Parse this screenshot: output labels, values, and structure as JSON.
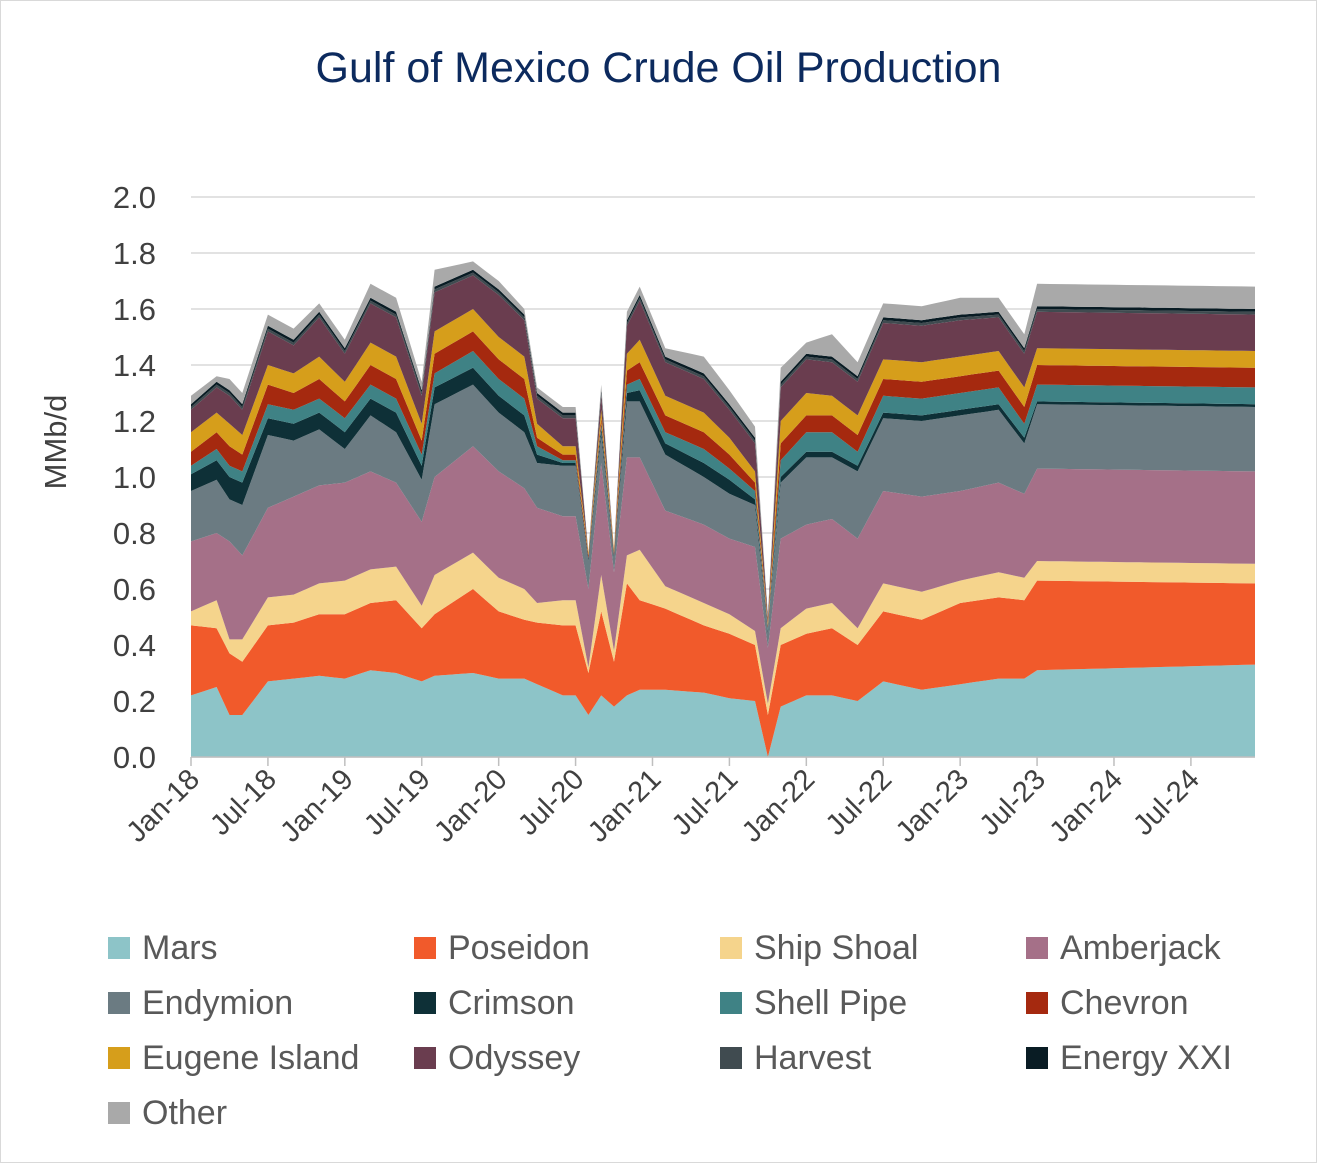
{
  "title": "Gulf of Mexico Crude Oil Production",
  "chart_data": {
    "type": "area",
    "stacked": true,
    "title": "Gulf of Mexico Crude Oil Production",
    "xlabel": "",
    "ylabel": "MMb/d",
    "ylim": [
      0,
      2.0
    ],
    "yticks": [
      "0.0",
      "0.2",
      "0.4",
      "0.6",
      "0.8",
      "1.0",
      "1.2",
      "1.4",
      "1.6",
      "1.8",
      "2.0"
    ],
    "grid": "horizontal",
    "legend": "bottom",
    "x_labels": [
      "Jan-18",
      "Jul-18",
      "Jan-19",
      "Jul-19",
      "Jan-20",
      "Jul-20",
      "Jan-21",
      "Jul-21",
      "Jan-22",
      "Jul-22",
      "Jan-23",
      "Jul-23",
      "Jan-24",
      "Jul-24"
    ],
    "x_label_index": [
      0,
      6,
      12,
      18,
      24,
      30,
      36,
      42,
      48,
      54,
      60,
      66,
      72,
      78
    ],
    "n_points": 84,
    "series_names": [
      "Mars",
      "Poseidon",
      "Ship Shoal",
      "Amberjack",
      "Endymion",
      "Crimson",
      "Shell Pipe",
      "Chevron",
      "Eugene Island",
      "Odyssey",
      "Harvest",
      "Energy XXI",
      "Other"
    ],
    "colors": [
      "#8dc4c8",
      "#f15a2b",
      "#f5d48c",
      "#a57088",
      "#6b7b82",
      "#0e3037",
      "#3f8285",
      "#a5290f",
      "#d69e1b",
      "#6a3d4f",
      "#404b50",
      "#091c24",
      "#a9a9a9"
    ],
    "x_start": "Jan-18",
    "x_end": "Dec-24",
    "anchors": [
      {
        "x": "Jan-18",
        "values": [
          0.22,
          0.25,
          0.05,
          0.25,
          0.18,
          0.06,
          0.03,
          0.05,
          0.07,
          0.08,
          0.01,
          0.01,
          0.03
        ]
      },
      {
        "x": "Mar-18",
        "values": [
          0.25,
          0.21,
          0.1,
          0.24,
          0.19,
          0.07,
          0.04,
          0.06,
          0.07,
          0.09,
          0.01,
          0.01,
          0.02
        ]
      },
      {
        "x": "Apr-18",
        "values": [
          0.15,
          0.22,
          0.05,
          0.35,
          0.15,
          0.08,
          0.04,
          0.07,
          0.08,
          0.1,
          0.01,
          0.01,
          0.04
        ]
      },
      {
        "x": "May-18",
        "values": [
          0.15,
          0.19,
          0.08,
          0.3,
          0.18,
          0.08,
          0.04,
          0.06,
          0.07,
          0.09,
          0.01,
          0.01,
          0.04
        ]
      },
      {
        "x": "Jul-18",
        "values": [
          0.27,
          0.2,
          0.1,
          0.32,
          0.26,
          0.06,
          0.05,
          0.07,
          0.07,
          0.12,
          0.01,
          0.01,
          0.04
        ]
      },
      {
        "x": "Sep-18",
        "values": [
          0.28,
          0.2,
          0.1,
          0.35,
          0.2,
          0.06,
          0.05,
          0.06,
          0.07,
          0.1,
          0.01,
          0.01,
          0.04
        ]
      },
      {
        "x": "Nov-18",
        "values": [
          0.29,
          0.22,
          0.11,
          0.35,
          0.2,
          0.06,
          0.05,
          0.07,
          0.08,
          0.14,
          0.01,
          0.01,
          0.03
        ]
      },
      {
        "x": "Jan-19",
        "values": [
          0.28,
          0.23,
          0.12,
          0.35,
          0.12,
          0.06,
          0.05,
          0.06,
          0.07,
          0.1,
          0.01,
          0.01,
          0.03
        ]
      },
      {
        "x": "Mar-19",
        "values": [
          0.31,
          0.24,
          0.12,
          0.35,
          0.2,
          0.06,
          0.05,
          0.07,
          0.08,
          0.14,
          0.01,
          0.01,
          0.05
        ]
      },
      {
        "x": "May-19",
        "values": [
          0.3,
          0.26,
          0.12,
          0.3,
          0.18,
          0.07,
          0.05,
          0.07,
          0.08,
          0.14,
          0.01,
          0.01,
          0.05
        ]
      },
      {
        "x": "Jul-19",
        "values": [
          0.27,
          0.19,
          0.08,
          0.3,
          0.15,
          0.05,
          0.04,
          0.05,
          0.06,
          0.1,
          0.01,
          0.01,
          0.03
        ]
      },
      {
        "x": "Aug-19",
        "values": [
          0.29,
          0.22,
          0.14,
          0.35,
          0.26,
          0.06,
          0.05,
          0.07,
          0.08,
          0.14,
          0.01,
          0.01,
          0.06
        ]
      },
      {
        "x": "Nov-19",
        "values": [
          0.3,
          0.3,
          0.13,
          0.38,
          0.22,
          0.06,
          0.06,
          0.07,
          0.08,
          0.12,
          0.01,
          0.01,
          0.03
        ]
      },
      {
        "x": "Jan-20",
        "values": [
          0.28,
          0.24,
          0.12,
          0.38,
          0.21,
          0.06,
          0.06,
          0.07,
          0.08,
          0.15,
          0.01,
          0.01,
          0.03
        ]
      },
      {
        "x": "Mar-20",
        "values": [
          0.28,
          0.21,
          0.11,
          0.36,
          0.2,
          0.06,
          0.06,
          0.07,
          0.08,
          0.13,
          0.01,
          0.01,
          0.02
        ]
      },
      {
        "x": "Apr-20",
        "values": [
          0.26,
          0.22,
          0.07,
          0.34,
          0.16,
          0.03,
          0.03,
          0.03,
          0.05,
          0.09,
          0.01,
          0.01,
          0.02
        ]
      },
      {
        "x": "Jun-20",
        "values": [
          0.22,
          0.25,
          0.09,
          0.3,
          0.18,
          0.01,
          0.01,
          0.02,
          0.03,
          0.1,
          0.01,
          0.01,
          0.02
        ]
      },
      {
        "x": "Jul-20",
        "values": [
          0.22,
          0.25,
          0.09,
          0.3,
          0.18,
          0.01,
          0.01,
          0.02,
          0.03,
          0.1,
          0.01,
          0.01,
          0.02
        ]
      },
      {
        "x": "Aug-20",
        "values": [
          0.15,
          0.15,
          0.02,
          0.28,
          0.1,
          0.01,
          0.0,
          0.01,
          0.01,
          0.0,
          0.0,
          0.0,
          0.0
        ]
      },
      {
        "x": "Sep-20",
        "values": [
          0.22,
          0.3,
          0.13,
          0.4,
          0.1,
          0.02,
          0.02,
          0.02,
          0.03,
          0.05,
          0.01,
          0.01,
          0.02
        ]
      },
      {
        "x": "Oct-20",
        "values": [
          0.18,
          0.16,
          0.04,
          0.28,
          0.05,
          0.01,
          0.0,
          0.01,
          0.01,
          0.0,
          0.0,
          0.0,
          0.0
        ]
      },
      {
        "x": "Nov-20",
        "values": [
          0.22,
          0.4,
          0.1,
          0.35,
          0.2,
          0.03,
          0.03,
          0.05,
          0.06,
          0.1,
          0.01,
          0.01,
          0.03
        ]
      },
      {
        "x": "Dec-20",
        "values": [
          0.24,
          0.32,
          0.18,
          0.33,
          0.2,
          0.04,
          0.04,
          0.06,
          0.08,
          0.14,
          0.01,
          0.01,
          0.03
        ]
      },
      {
        "x": "Feb-21",
        "values": [
          0.24,
          0.29,
          0.08,
          0.27,
          0.2,
          0.04,
          0.04,
          0.06,
          0.07,
          0.12,
          0.01,
          0.01,
          0.03
        ]
      },
      {
        "x": "May-21",
        "values": [
          0.23,
          0.24,
          0.08,
          0.28,
          0.17,
          0.05,
          0.05,
          0.06,
          0.07,
          0.12,
          0.01,
          0.01,
          0.06
        ]
      },
      {
        "x": "Jul-21",
        "values": [
          0.21,
          0.23,
          0.07,
          0.27,
          0.16,
          0.05,
          0.04,
          0.05,
          0.06,
          0.1,
          0.01,
          0.01,
          0.05
        ]
      },
      {
        "x": "Sep-21",
        "values": [
          0.2,
          0.2,
          0.05,
          0.3,
          0.15,
          0.02,
          0.03,
          0.03,
          0.04,
          0.1,
          0.01,
          0.01,
          0.04
        ]
      },
      {
        "x": "Oct-21",
        "values": [
          0.0,
          0.15,
          0.04,
          0.2,
          0.05,
          0.01,
          0.01,
          0.01,
          0.01,
          0.02,
          0.0,
          0.0,
          0.01
        ]
      },
      {
        "x": "Nov-21",
        "values": [
          0.18,
          0.22,
          0.06,
          0.32,
          0.2,
          0.02,
          0.06,
          0.06,
          0.08,
          0.12,
          0.01,
          0.01,
          0.05
        ]
      },
      {
        "x": "Jan-22",
        "values": [
          0.22,
          0.22,
          0.09,
          0.3,
          0.24,
          0.02,
          0.07,
          0.06,
          0.08,
          0.12,
          0.01,
          0.01,
          0.04
        ]
      },
      {
        "x": "Mar-22",
        "values": [
          0.22,
          0.24,
          0.09,
          0.3,
          0.22,
          0.02,
          0.07,
          0.06,
          0.07,
          0.12,
          0.01,
          0.01,
          0.08
        ]
      },
      {
        "x": "May-22",
        "values": [
          0.2,
          0.2,
          0.06,
          0.32,
          0.24,
          0.02,
          0.05,
          0.06,
          0.07,
          0.12,
          0.01,
          0.01,
          0.05
        ]
      },
      {
        "x": "Jul-22",
        "values": [
          0.27,
          0.25,
          0.1,
          0.33,
          0.26,
          0.02,
          0.06,
          0.06,
          0.07,
          0.13,
          0.01,
          0.01,
          0.05
        ]
      },
      {
        "x": "Oct-22",
        "values": [
          0.24,
          0.25,
          0.1,
          0.34,
          0.27,
          0.02,
          0.06,
          0.06,
          0.07,
          0.13,
          0.01,
          0.01,
          0.05
        ]
      },
      {
        "x": "Jan-23",
        "values": [
          0.26,
          0.29,
          0.08,
          0.32,
          0.27,
          0.02,
          0.06,
          0.06,
          0.07,
          0.13,
          0.01,
          0.01,
          0.06
        ]
      },
      {
        "x": "Apr-23",
        "values": [
          0.28,
          0.29,
          0.09,
          0.32,
          0.26,
          0.02,
          0.06,
          0.06,
          0.07,
          0.12,
          0.01,
          0.01,
          0.05
        ]
      },
      {
        "x": "Jun-23",
        "values": [
          0.28,
          0.28,
          0.08,
          0.3,
          0.18,
          0.02,
          0.05,
          0.06,
          0.07,
          0.12,
          0.01,
          0.01,
          0.05
        ]
      },
      {
        "x": "Jul-23",
        "values": [
          0.31,
          0.32,
          0.07,
          0.33,
          0.23,
          0.01,
          0.06,
          0.07,
          0.06,
          0.13,
          0.01,
          0.01,
          0.08
        ]
      },
      {
        "x": "Dec-24",
        "values": [
          0.33,
          0.29,
          0.07,
          0.33,
          0.23,
          0.01,
          0.06,
          0.07,
          0.06,
          0.13,
          0.01,
          0.01,
          0.08
        ]
      }
    ]
  },
  "legend": [
    {
      "label": "Mars",
      "color": "#8dc4c8"
    },
    {
      "label": "Poseidon",
      "color": "#f15a2b"
    },
    {
      "label": "Ship Shoal",
      "color": "#f5d48c"
    },
    {
      "label": "Amberjack",
      "color": "#a57088"
    },
    {
      "label": "Endymion",
      "color": "#6b7b82"
    },
    {
      "label": "Crimson",
      "color": "#0e3037"
    },
    {
      "label": "Shell Pipe",
      "color": "#3f8285"
    },
    {
      "label": "Chevron",
      "color": "#a5290f"
    },
    {
      "label": "Eugene Island",
      "color": "#d69e1b"
    },
    {
      "label": "Odyssey",
      "color": "#6a3d4f"
    },
    {
      "label": "Harvest",
      "color": "#404b50"
    },
    {
      "label": "Energy XXI",
      "color": "#091c24"
    },
    {
      "label": "Other",
      "color": "#a9a9a9"
    }
  ]
}
